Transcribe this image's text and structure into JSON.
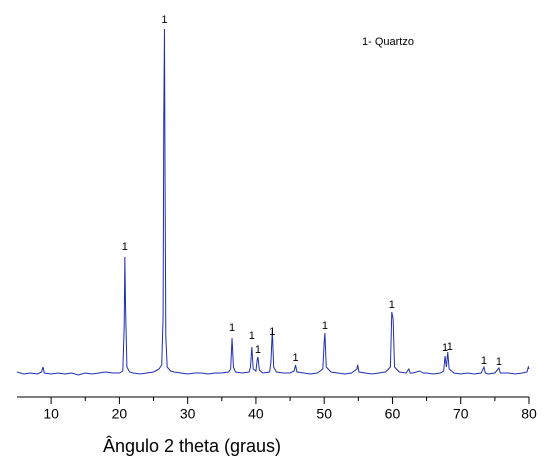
{
  "chart_data": {
    "type": "line",
    "x_label": "Ângulo 2 theta (graus)",
    "legend_note": "1- Quartzo",
    "xlim": [
      5,
      80
    ],
    "xticks": [
      10,
      20,
      30,
      40,
      50,
      60,
      70,
      80
    ],
    "xminor_ticks": [
      15,
      25,
      35,
      45,
      55,
      65,
      75
    ],
    "ylim": [
      0,
      380
    ],
    "series": [
      {
        "color": "#1f2fb0",
        "x": [
          5,
          6,
          7,
          8,
          8.6,
          8.8,
          9,
          10,
          11,
          12,
          13,
          14,
          15,
          16,
          17,
          18,
          19,
          20,
          20.5,
          20.7,
          20.8,
          20.9,
          21.1,
          21.5,
          22,
          23,
          24,
          25,
          25.8,
          26.2,
          26.4,
          26.5,
          26.6,
          26.7,
          26.8,
          27,
          27.5,
          28,
          29,
          30,
          31,
          32,
          33,
          34,
          35,
          36,
          36.3,
          36.5,
          36.7,
          37,
          38,
          39,
          39.2,
          39.4,
          39.6,
          40,
          40.2,
          40.3,
          40.5,
          41,
          42,
          42.2,
          42.4,
          42.6,
          43,
          44,
          45,
          45.6,
          45.8,
          46,
          47,
          48,
          49,
          49.8,
          50,
          50.1,
          50.3,
          51,
          52,
          53,
          54,
          54.8,
          54.9,
          55.1,
          56,
          57,
          58,
          59,
          59.7,
          59.9,
          60.1,
          60.3,
          61,
          62,
          62.4,
          62.6,
          63,
          64,
          64.5,
          65,
          66,
          67,
          67.5,
          67.7,
          67.9,
          68.1,
          68.3,
          69,
          70,
          71,
          72,
          73,
          73.4,
          73.6,
          74,
          75,
          75.6,
          75.8,
          77,
          78,
          79,
          79.7,
          79.9,
          80
        ],
        "values": [
          25,
          23,
          24,
          23,
          25,
          30,
          24,
          23,
          24,
          23,
          24,
          22,
          24,
          23,
          24,
          25,
          24,
          24,
          26,
          70,
          140,
          90,
          30,
          25,
          24,
          23,
          24,
          25,
          28,
          32,
          80,
          275,
          368,
          200,
          60,
          30,
          26,
          25,
          24,
          23,
          24,
          24,
          23,
          24,
          24,
          25,
          28,
          59,
          30,
          25,
          24,
          25,
          30,
          50,
          28,
          26,
          38,
          40,
          27,
          24,
          25,
          35,
          67,
          30,
          25,
          24,
          24,
          26,
          32,
          25,
          24,
          23,
          24,
          28,
          55,
          64,
          30,
          25,
          24,
          23,
          24,
          28,
          32,
          25,
          24,
          23,
          24,
          25,
          30,
          85,
          78,
          30,
          25,
          24,
          28,
          24,
          24,
          26,
          24,
          24,
          23,
          24,
          26,
          41,
          30,
          45,
          28,
          24,
          23,
          24,
          23,
          24,
          30,
          24,
          23,
          24,
          29,
          24,
          24,
          23,
          24,
          25,
          30,
          28
        ]
      }
    ],
    "annotations": [
      {
        "text": "1",
        "x": 20.8,
        "y": 150
      },
      {
        "text": "1",
        "x": 26.6,
        "y": 377
      },
      {
        "text": "1",
        "x": 36.5,
        "y": 69
      },
      {
        "text": "1",
        "x": 39.4,
        "y": 61
      },
      {
        "text": "1",
        "x": 40.3,
        "y": 47
      },
      {
        "text": "1",
        "x": 42.4,
        "y": 65
      },
      {
        "text": "1",
        "x": 45.8,
        "y": 39
      },
      {
        "text": "1",
        "x": 50.1,
        "y": 71
      },
      {
        "text": "1",
        "x": 59.9,
        "y": 92
      },
      {
        "text": "1",
        "x": 67.7,
        "y": 49
      },
      {
        "text": "1",
        "x": 68.4,
        "y": 50
      },
      {
        "text": "1",
        "x": 73.4,
        "y": 36
      },
      {
        "text": "1",
        "x": 75.6,
        "y": 35
      }
    ]
  }
}
